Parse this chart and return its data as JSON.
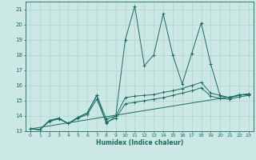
{
  "bg_color": "#cce8e5",
  "line_color": "#1a6b60",
  "grid_color": "#afd4d0",
  "xlabel": "Humidex (Indice chaleur)",
  "ylim": [
    13,
    21.5
  ],
  "xlim": [
    -0.5,
    23.5
  ],
  "yticks": [
    13,
    14,
    15,
    16,
    17,
    18,
    19,
    20,
    21
  ],
  "xticks": [
    0,
    1,
    2,
    3,
    4,
    5,
    6,
    7,
    8,
    9,
    10,
    11,
    12,
    13,
    14,
    15,
    16,
    17,
    18,
    19,
    20,
    21,
    22,
    23
  ],
  "lines": [
    {
      "x": [
        0,
        1,
        2,
        3,
        4,
        5,
        6,
        7,
        8,
        9,
        10,
        11,
        12,
        13,
        14,
        15,
        16,
        17,
        18,
        19,
        20,
        21,
        22,
        23
      ],
      "y": [
        13.15,
        13.1,
        13.7,
        13.85,
        13.5,
        13.9,
        14.2,
        15.35,
        13.5,
        14.0,
        19.0,
        21.2,
        17.3,
        18.0,
        20.7,
        18.0,
        16.1,
        18.1,
        20.1,
        17.4,
        15.3,
        15.2,
        15.4,
        15.4
      ],
      "marker": true
    },
    {
      "x": [
        0,
        1,
        2,
        3,
        4,
        5,
        6,
        7,
        8,
        9,
        10,
        11,
        12,
        13,
        14,
        15,
        16,
        17,
        18,
        19,
        20,
        21,
        22,
        23
      ],
      "y": [
        13.15,
        13.1,
        13.7,
        13.85,
        13.5,
        13.9,
        14.2,
        15.35,
        13.8,
        14.0,
        15.2,
        15.3,
        15.35,
        15.4,
        15.55,
        15.65,
        15.8,
        16.0,
        16.2,
        15.5,
        15.35,
        15.2,
        15.35,
        15.45
      ],
      "marker": true
    },
    {
      "x": [
        0,
        1,
        2,
        3,
        4,
        5,
        6,
        7,
        8,
        9,
        10,
        11,
        12,
        13,
        14,
        15,
        16,
        17,
        18,
        19,
        20,
        21,
        22,
        23
      ],
      "y": [
        13.15,
        13.1,
        13.65,
        13.8,
        13.5,
        13.85,
        14.1,
        15.1,
        13.6,
        13.85,
        14.8,
        14.9,
        15.0,
        15.1,
        15.2,
        15.35,
        15.5,
        15.65,
        15.85,
        15.3,
        15.15,
        15.1,
        15.25,
        15.35
      ],
      "marker": true
    },
    {
      "x": [
        0,
        23
      ],
      "y": [
        13.15,
        15.45
      ],
      "marker": false
    }
  ]
}
